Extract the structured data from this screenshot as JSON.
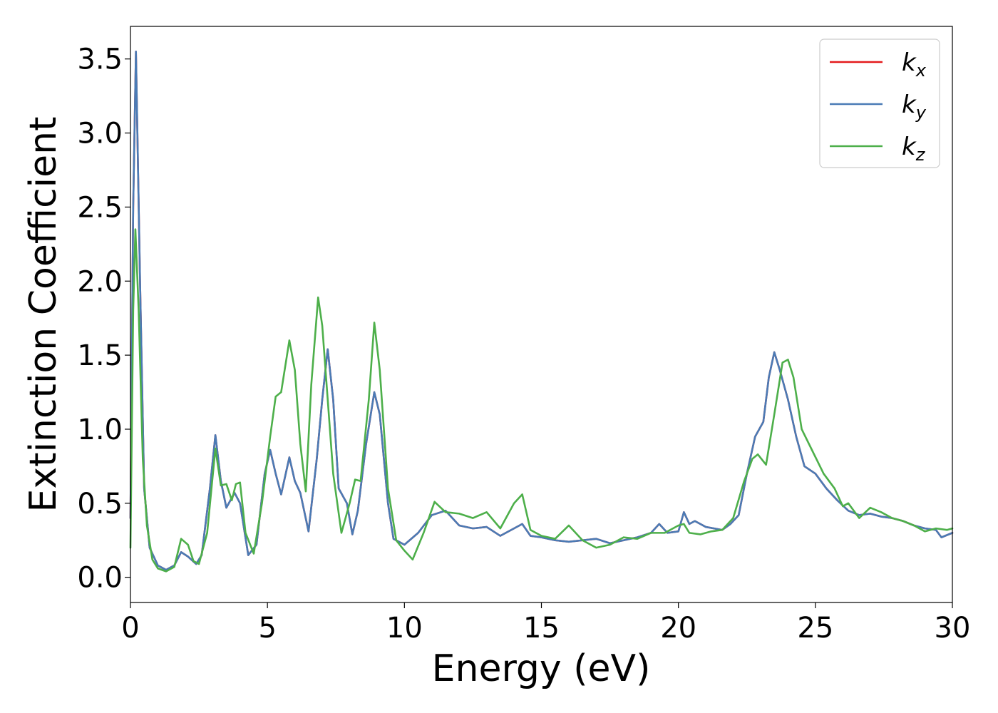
{
  "chart_data": {
    "type": "line",
    "xlabel": "Energy (eV)",
    "ylabel": "Extinction Coefficient",
    "xlim": [
      0,
      30
    ],
    "ylim": [
      -0.17,
      3.72
    ],
    "xticks": [
      0,
      5,
      10,
      15,
      20,
      25,
      30
    ],
    "yticks": [
      0.0,
      0.5,
      1.0,
      1.5,
      2.0,
      2.5,
      3.0,
      3.5
    ],
    "grid": false,
    "legend_position": "top-right",
    "series": [
      {
        "name": "k",
        "sub": "x",
        "color": "#e41a1c",
        "x": [
          0,
          0.1,
          0.2,
          0.35,
          0.5,
          0.7,
          1.0,
          1.3,
          1.6,
          1.85,
          2.1,
          2.4,
          2.6,
          2.9,
          3.1,
          3.3,
          3.5,
          3.8,
          4.0,
          4.3,
          4.6,
          4.9,
          5.1,
          5.3,
          5.5,
          5.8,
          6.0,
          6.2,
          6.5,
          6.8,
          7.0,
          7.2,
          7.4,
          7.6,
          7.9,
          8.1,
          8.3,
          8.6,
          8.9,
          9.1,
          9.4,
          9.6,
          10.0,
          10.5,
          11.0,
          11.5,
          12.0,
          12.5,
          13.0,
          13.5,
          14.0,
          14.3,
          14.6,
          15.0,
          15.5,
          16.0,
          16.5,
          17.0,
          17.5,
          18.0,
          18.5,
          19.0,
          19.3,
          19.6,
          20.0,
          20.2,
          20.4,
          20.6,
          20.8,
          21.0,
          21.3,
          21.6,
          21.9,
          22.2,
          22.5,
          22.8,
          23.1,
          23.3,
          23.5,
          23.7,
          24.0,
          24.3,
          24.6,
          25.0,
          25.4,
          25.8,
          26.2,
          26.6,
          27.0,
          27.4,
          27.8,
          28.2,
          28.6,
          29.0,
          29.4,
          29.6,
          30.0
        ],
        "y": [
          0.4,
          2.5,
          3.55,
          2.0,
          0.6,
          0.2,
          0.08,
          0.05,
          0.08,
          0.17,
          0.14,
          0.09,
          0.15,
          0.6,
          0.96,
          0.65,
          0.47,
          0.57,
          0.5,
          0.15,
          0.22,
          0.7,
          0.86,
          0.7,
          0.56,
          0.81,
          0.65,
          0.57,
          0.31,
          0.8,
          1.2,
          1.54,
          1.2,
          0.6,
          0.5,
          0.29,
          0.45,
          0.9,
          1.25,
          1.1,
          0.5,
          0.26,
          0.22,
          0.3,
          0.42,
          0.45,
          0.35,
          0.33,
          0.34,
          0.28,
          0.33,
          0.36,
          0.28,
          0.27,
          0.25,
          0.24,
          0.25,
          0.26,
          0.23,
          0.25,
          0.27,
          0.3,
          0.36,
          0.3,
          0.31,
          0.44,
          0.36,
          0.38,
          0.36,
          0.34,
          0.33,
          0.32,
          0.36,
          0.42,
          0.7,
          0.95,
          1.05,
          1.35,
          1.52,
          1.4,
          1.2,
          0.95,
          0.75,
          0.7,
          0.6,
          0.52,
          0.45,
          0.42,
          0.43,
          0.41,
          0.4,
          0.38,
          0.35,
          0.33,
          0.32,
          0.27,
          0.3
        ]
      },
      {
        "name": "k",
        "sub": "y",
        "color": "#4a7bb5",
        "x": [
          0,
          0.1,
          0.2,
          0.35,
          0.5,
          0.7,
          1.0,
          1.3,
          1.6,
          1.85,
          2.1,
          2.4,
          2.6,
          2.9,
          3.1,
          3.3,
          3.5,
          3.8,
          4.0,
          4.3,
          4.6,
          4.9,
          5.1,
          5.3,
          5.5,
          5.8,
          6.0,
          6.2,
          6.5,
          6.8,
          7.0,
          7.2,
          7.4,
          7.6,
          7.9,
          8.1,
          8.3,
          8.6,
          8.9,
          9.1,
          9.4,
          9.6,
          10.0,
          10.5,
          11.0,
          11.5,
          12.0,
          12.5,
          13.0,
          13.5,
          14.0,
          14.3,
          14.6,
          15.0,
          15.5,
          16.0,
          16.5,
          17.0,
          17.5,
          18.0,
          18.5,
          19.0,
          19.3,
          19.6,
          20.0,
          20.2,
          20.4,
          20.6,
          20.8,
          21.0,
          21.3,
          21.6,
          21.9,
          22.2,
          22.5,
          22.8,
          23.1,
          23.3,
          23.5,
          23.7,
          24.0,
          24.3,
          24.6,
          25.0,
          25.4,
          25.8,
          26.2,
          26.6,
          27.0,
          27.4,
          27.8,
          28.2,
          28.6,
          29.0,
          29.4,
          29.6,
          30.0
        ],
        "y": [
          0.4,
          2.5,
          3.55,
          2.0,
          0.6,
          0.2,
          0.08,
          0.05,
          0.08,
          0.17,
          0.14,
          0.09,
          0.15,
          0.6,
          0.96,
          0.65,
          0.47,
          0.57,
          0.5,
          0.15,
          0.22,
          0.7,
          0.86,
          0.7,
          0.56,
          0.81,
          0.65,
          0.57,
          0.31,
          0.8,
          1.2,
          1.54,
          1.2,
          0.6,
          0.5,
          0.29,
          0.45,
          0.9,
          1.25,
          1.1,
          0.5,
          0.26,
          0.22,
          0.3,
          0.42,
          0.45,
          0.35,
          0.33,
          0.34,
          0.28,
          0.33,
          0.36,
          0.28,
          0.27,
          0.25,
          0.24,
          0.25,
          0.26,
          0.23,
          0.25,
          0.27,
          0.3,
          0.36,
          0.3,
          0.31,
          0.44,
          0.36,
          0.38,
          0.36,
          0.34,
          0.33,
          0.32,
          0.36,
          0.42,
          0.7,
          0.95,
          1.05,
          1.35,
          1.52,
          1.4,
          1.2,
          0.95,
          0.75,
          0.7,
          0.6,
          0.52,
          0.45,
          0.42,
          0.43,
          0.41,
          0.4,
          0.38,
          0.35,
          0.33,
          0.32,
          0.27,
          0.3
        ]
      },
      {
        "name": "k",
        "sub": "z",
        "color": "#4daf4a",
        "x": [
          0,
          0.1,
          0.18,
          0.3,
          0.45,
          0.6,
          0.8,
          1.0,
          1.3,
          1.6,
          1.85,
          2.1,
          2.3,
          2.5,
          2.8,
          3.1,
          3.3,
          3.5,
          3.7,
          3.85,
          4.0,
          4.2,
          4.5,
          4.8,
          5.1,
          5.3,
          5.5,
          5.8,
          6.0,
          6.2,
          6.4,
          6.6,
          6.85,
          7.0,
          7.2,
          7.4,
          7.7,
          8.0,
          8.2,
          8.4,
          8.7,
          8.9,
          9.1,
          9.4,
          9.7,
          10.0,
          10.3,
          10.7,
          11.1,
          11.5,
          12.0,
          12.5,
          13.0,
          13.5,
          14.0,
          14.3,
          14.6,
          15.0,
          15.5,
          16.0,
          16.5,
          17.0,
          17.5,
          18.0,
          18.5,
          19.0,
          19.5,
          20.0,
          20.2,
          20.4,
          20.8,
          21.2,
          21.6,
          22.0,
          22.4,
          22.7,
          22.9,
          23.2,
          23.5,
          23.8,
          24.0,
          24.2,
          24.5,
          24.9,
          25.3,
          25.7,
          26.0,
          26.2,
          26.6,
          27.0,
          27.4,
          27.8,
          28.2,
          28.6,
          29.0,
          29.4,
          29.8,
          30.0
        ],
        "y": [
          0.2,
          1.8,
          2.35,
          1.8,
          0.8,
          0.35,
          0.12,
          0.06,
          0.04,
          0.07,
          0.26,
          0.22,
          0.11,
          0.09,
          0.3,
          0.87,
          0.62,
          0.63,
          0.52,
          0.63,
          0.64,
          0.3,
          0.16,
          0.5,
          0.95,
          1.22,
          1.25,
          1.6,
          1.4,
          0.9,
          0.58,
          1.3,
          1.89,
          1.7,
          1.2,
          0.7,
          0.3,
          0.5,
          0.66,
          0.65,
          1.2,
          1.72,
          1.4,
          0.6,
          0.25,
          0.18,
          0.12,
          0.3,
          0.51,
          0.44,
          0.43,
          0.4,
          0.44,
          0.33,
          0.5,
          0.56,
          0.32,
          0.28,
          0.26,
          0.35,
          0.25,
          0.2,
          0.22,
          0.27,
          0.26,
          0.3,
          0.3,
          0.35,
          0.36,
          0.3,
          0.29,
          0.31,
          0.32,
          0.4,
          0.65,
          0.8,
          0.83,
          0.76,
          1.1,
          1.45,
          1.47,
          1.35,
          1.0,
          0.85,
          0.7,
          0.6,
          0.48,
          0.5,
          0.4,
          0.47,
          0.44,
          0.4,
          0.38,
          0.35,
          0.31,
          0.33,
          0.32,
          0.33
        ]
      }
    ]
  }
}
